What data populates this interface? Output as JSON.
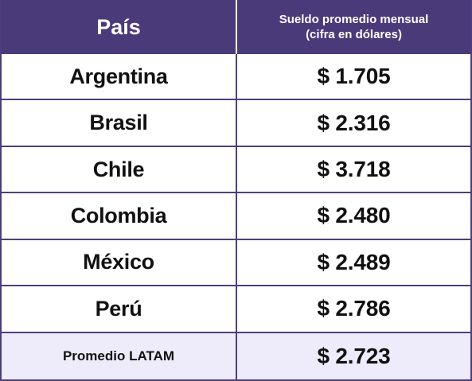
{
  "header": {
    "country_label": "País",
    "salary_label_line1": "Sueldo promedio mensual",
    "salary_label_line2": "(cifra en dólares)"
  },
  "rows": [
    {
      "country": "Argentina",
      "salary": "$ 1.705"
    },
    {
      "country": "Brasil",
      "salary": "$ 2.316"
    },
    {
      "country": "Chile",
      "salary": "$ 3.718"
    },
    {
      "country": "Colombia",
      "salary": "$ 2.480"
    },
    {
      "country": "México",
      "salary": "$ 2.489"
    },
    {
      "country": "Perú",
      "salary": "$ 2.786"
    }
  ],
  "average": {
    "label": "Promedio LATAM",
    "salary": "$ 2.723"
  },
  "colors": {
    "header_bg": "#4a3a7a",
    "border": "#4e3d7e",
    "average_bg": "#eeebfa"
  }
}
